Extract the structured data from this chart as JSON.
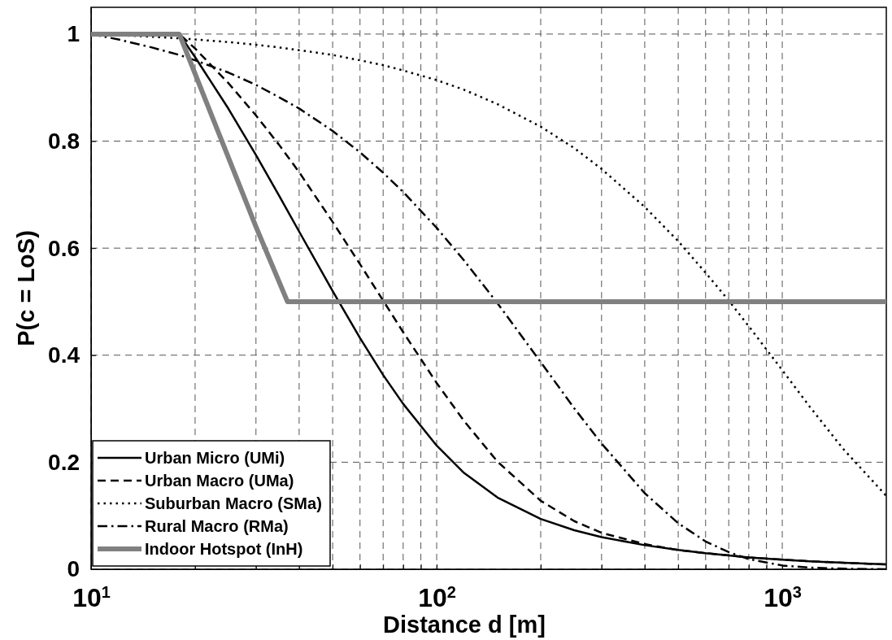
{
  "chart_data": {
    "type": "line",
    "xlabel": "Distance d [m]",
    "ylabel": "P(c = LoS)",
    "log": "x",
    "xlim": [
      10,
      2000
    ],
    "ylim": [
      0,
      1.05
    ],
    "xticks": [
      {
        "value": 10,
        "label": "10$^{1}$"
      },
      {
        "value": 20,
        "label": null
      },
      {
        "value": 30,
        "label": null
      },
      {
        "value": 40,
        "label": null
      },
      {
        "value": 50,
        "label": null
      },
      {
        "value": 60,
        "label": null
      },
      {
        "value": 70,
        "label": null
      },
      {
        "value": 80,
        "label": null
      },
      {
        "value": 90,
        "label": null
      },
      {
        "value": 100,
        "label": "10$^{2}$"
      },
      {
        "value": 200,
        "label": null
      },
      {
        "value": 300,
        "label": null
      },
      {
        "value": 400,
        "label": null
      },
      {
        "value": 500,
        "label": null
      },
      {
        "value": 600,
        "label": null
      },
      {
        "value": 700,
        "label": null
      },
      {
        "value": 800,
        "label": null
      },
      {
        "value": 900,
        "label": null
      },
      {
        "value": 1000,
        "label": "10$^{3}$"
      }
    ],
    "yticks": [
      0,
      0.2,
      0.4,
      0.6,
      0.8,
      1
    ],
    "grid": true,
    "legend": "bottom left",
    "marker": "none",
    "x": [
      10,
      12,
      15,
      18,
      20,
      25,
      30,
      35,
      40,
      50,
      60,
      70,
      80,
      100,
      120,
      150,
      200,
      250,
      300,
      400,
      500,
      600,
      700,
      800,
      1000,
      1200,
      1500,
      2000
    ],
    "series": [
      {
        "name": "Urban Micro (UMi)",
        "color": "#000000",
        "line_style": "solid",
        "values": [
          1,
          1,
          1,
          1,
          0.957,
          0.86,
          0.774,
          0.698,
          0.631,
          0.52,
          0.432,
          0.363,
          0.309,
          0.231,
          0.18,
          0.134,
          0.094,
          0.073,
          0.06,
          0.045,
          0.036,
          0.03,
          0.026,
          0.022,
          0.018,
          0.015,
          0.012,
          0.009
        ]
      },
      {
        "name": "Urban Macro (UMa)",
        "color": "#000000",
        "line_style": "dashed",
        "values": [
          1,
          1,
          1,
          1,
          0.973,
          0.908,
          0.848,
          0.793,
          0.742,
          0.649,
          0.57,
          0.502,
          0.443,
          0.348,
          0.277,
          0.201,
          0.128,
          0.09,
          0.068,
          0.047,
          0.036,
          0.03,
          0.026,
          0.022,
          0.018,
          0.015,
          0.012,
          0.009
        ]
      },
      {
        "name": "Suburban Macro (SMa)",
        "color": "#000000",
        "line_style": "dotted",
        "values": [
          1,
          0.998,
          0.995,
          0.992,
          0.99,
          0.985,
          0.98,
          0.975,
          0.97,
          0.961,
          0.951,
          0.942,
          0.932,
          0.914,
          0.896,
          0.869,
          0.827,
          0.787,
          0.748,
          0.677,
          0.613,
          0.554,
          0.502,
          0.454,
          0.372,
          0.304,
          0.225,
          0.137
        ]
      },
      {
        "name": "Rural Macro (RMa)",
        "color": "#000000",
        "line_style": "dashdot",
        "values": [
          1,
          0.99,
          0.975,
          0.961,
          0.951,
          0.928,
          0.905,
          0.882,
          0.861,
          0.819,
          0.779,
          0.741,
          0.705,
          0.638,
          0.577,
          0.497,
          0.387,
          0.301,
          0.235,
          0.142,
          0.086,
          0.052,
          0.032,
          0.019,
          0.007,
          0.003,
          0.001,
          0
        ]
      },
      {
        "name": "Indoor Hotspot (InH)",
        "color": "#808080",
        "line_style": "solid",
        "x": [
          10,
          18,
          30,
          37,
          2000
        ],
        "values": [
          1,
          1,
          0.64,
          0.5,
          0.5
        ]
      }
    ]
  }
}
